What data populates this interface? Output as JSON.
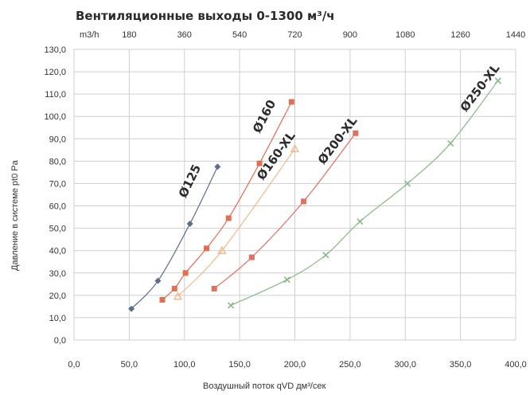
{
  "chart_data": {
    "type": "scatter",
    "title": "Вентиляционные выходы 0-1300 м³/ч",
    "xlabel": "Воздушный поток qVD дм³/сек",
    "ylabel": "Давление в системе pt0 Pa",
    "top_axis_unit": "m3/h",
    "xlim": [
      0,
      400
    ],
    "ylim": [
      0,
      130
    ],
    "x_ticks": [
      "0,0",
      "50,0",
      "100,0",
      "150,0",
      "200,0",
      "250,0",
      "300,0",
      "350,0",
      "400,0"
    ],
    "y_ticks": [
      "0,0",
      "10,0",
      "20,0",
      "30,0",
      "40,0",
      "50,0",
      "60,0",
      "70,0",
      "80,0",
      "90,0",
      "100,0",
      "110,0",
      "120,0",
      "130,0"
    ],
    "top_ticks": [
      "180",
      "360",
      "540",
      "720",
      "900",
      "1080",
      "1260",
      "1440"
    ],
    "grid": true,
    "series": [
      {
        "name": "Ø125",
        "color": "#5c6e8a",
        "marker": "diamond",
        "points": [
          [
            52,
            14
          ],
          [
            76,
            26.5
          ],
          [
            105,
            52
          ],
          [
            130,
            77.5
          ]
        ]
      },
      {
        "name": "Ø160",
        "color": "#e07050",
        "marker": "square",
        "points": [
          [
            80,
            18
          ],
          [
            91,
            23
          ],
          [
            101,
            30
          ],
          [
            120,
            41
          ],
          [
            140,
            54.5
          ],
          [
            168,
            79
          ],
          [
            197,
            106.5
          ]
        ]
      },
      {
        "name": "Ø160-XL",
        "color": "#f0b888",
        "marker": "triangle",
        "points": [
          [
            94,
            19.5
          ],
          [
            134,
            40
          ],
          [
            200,
            85.5
          ]
        ]
      },
      {
        "name": "Ø200-XL",
        "color": "#e07060",
        "marker": "square",
        "points": [
          [
            127,
            23
          ],
          [
            161,
            37
          ],
          [
            208,
            62
          ],
          [
            255,
            92.5
          ]
        ]
      },
      {
        "name": "Ø250-XL",
        "color": "#88b888",
        "marker": "x",
        "points": [
          [
            142,
            15.5
          ],
          [
            193,
            27
          ],
          [
            228,
            38
          ],
          [
            259,
            53
          ],
          [
            302,
            70
          ],
          [
            341,
            88
          ],
          [
            384,
            116
          ]
        ]
      }
    ]
  }
}
